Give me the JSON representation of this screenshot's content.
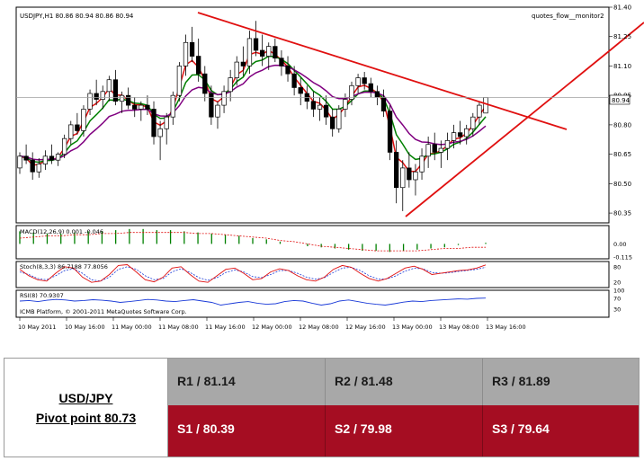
{
  "chart_data": {
    "type": "candlestick",
    "title": "USDJPY,H1  80.86 80.94 80.86 80.94",
    "watermark": "quotes_flow__monitor2",
    "price_axis": {
      "ticks": [
        "81.40",
        "81.25",
        "81.10",
        "80.95",
        "80.80",
        "80.65",
        "80.50",
        "80.35"
      ],
      "ylim": [
        80.3,
        81.4
      ],
      "current_price": "80.94"
    },
    "time_axis": [
      "10 May 2011",
      "10 May 16:00",
      "11 May 00:00",
      "11 May 08:00",
      "11 May 16:00",
      "12 May 00:00",
      "12 May 08:00",
      "12 May 16:00",
      "13 May 00:00",
      "13 May 08:00",
      "13 May 16:00"
    ],
    "candles": [
      [
        80.58,
        80.66,
        80.55,
        80.64
      ],
      [
        80.64,
        80.7,
        80.6,
        80.62
      ],
      [
        80.62,
        80.66,
        80.52,
        80.56
      ],
      [
        80.56,
        80.63,
        80.53,
        80.6
      ],
      [
        80.6,
        80.67,
        80.57,
        80.64
      ],
      [
        80.64,
        80.7,
        80.6,
        80.62
      ],
      [
        80.62,
        80.66,
        80.59,
        80.65
      ],
      [
        80.65,
        80.75,
        80.63,
        80.73
      ],
      [
        80.73,
        80.82,
        80.7,
        80.8
      ],
      [
        80.8,
        80.86,
        80.75,
        80.77
      ],
      [
        80.77,
        80.9,
        80.74,
        80.88
      ],
      [
        80.88,
        80.98,
        80.85,
        80.96
      ],
      [
        80.96,
        81.03,
        80.9,
        80.93
      ],
      [
        80.93,
        81.0,
        80.88,
        80.97
      ],
      [
        80.97,
        81.05,
        80.92,
        81.03
      ],
      [
        81.03,
        81.08,
        80.9,
        80.92
      ],
      [
        80.92,
        80.97,
        80.86,
        80.95
      ],
      [
        80.95,
        80.99,
        80.88,
        80.9
      ],
      [
        80.9,
        80.94,
        80.84,
        80.88
      ],
      [
        80.88,
        80.92,
        80.82,
        80.9
      ],
      [
        80.9,
        80.95,
        80.85,
        80.88
      ],
      [
        80.88,
        80.92,
        80.7,
        80.74
      ],
      [
        80.74,
        80.82,
        80.62,
        80.78
      ],
      [
        80.78,
        80.86,
        80.7,
        80.84
      ],
      [
        80.84,
        80.97,
        80.8,
        80.95
      ],
      [
        80.95,
        81.12,
        80.92,
        81.1
      ],
      [
        81.1,
        81.26,
        81.05,
        81.22
      ],
      [
        81.22,
        81.3,
        81.12,
        81.15
      ],
      [
        81.15,
        81.24,
        81.02,
        81.06
      ],
      [
        81.06,
        81.1,
        80.92,
        80.96
      ],
      [
        80.96,
        81.0,
        80.8,
        80.84
      ],
      [
        80.84,
        80.92,
        80.78,
        80.9
      ],
      [
        80.9,
        81.0,
        80.86,
        80.97
      ],
      [
        80.97,
        81.08,
        80.92,
        81.04
      ],
      [
        81.04,
        81.15,
        81.0,
        81.12
      ],
      [
        81.12,
        81.2,
        81.05,
        81.1
      ],
      [
        81.1,
        81.28,
        81.06,
        81.24
      ],
      [
        81.24,
        81.33,
        81.15,
        81.18
      ],
      [
        81.18,
        81.26,
        81.1,
        81.15
      ],
      [
        81.15,
        81.22,
        81.08,
        81.2
      ],
      [
        81.2,
        81.24,
        81.12,
        81.14
      ],
      [
        81.14,
        81.18,
        81.05,
        81.1
      ],
      [
        81.1,
        81.15,
        81.02,
        81.06
      ],
      [
        81.06,
        81.1,
        80.95,
        80.99
      ],
      [
        80.99,
        81.04,
        80.9,
        80.96
      ],
      [
        80.96,
        81.0,
        80.88,
        80.92
      ],
      [
        80.92,
        80.97,
        80.84,
        80.88
      ],
      [
        80.88,
        80.94,
        80.82,
        80.9
      ],
      [
        80.9,
        80.95,
        80.8,
        80.84
      ],
      [
        80.84,
        80.88,
        80.74,
        80.78
      ],
      [
        80.78,
        80.9,
        80.76,
        80.88
      ],
      [
        80.88,
        80.96,
        80.84,
        80.93
      ],
      [
        80.93,
        81.02,
        80.9,
        81.0
      ],
      [
        81.0,
        81.06,
        80.96,
        81.04
      ],
      [
        81.04,
        81.07,
        80.98,
        81.01
      ],
      [
        81.01,
        81.04,
        80.94,
        80.97
      ],
      [
        80.97,
        81.0,
        80.9,
        80.94
      ],
      [
        80.94,
        80.98,
        80.84,
        80.87
      ],
      [
        80.87,
        80.9,
        80.62,
        80.66
      ],
      [
        80.66,
        80.72,
        80.4,
        80.48
      ],
      [
        80.48,
        80.62,
        80.36,
        80.58
      ],
      [
        80.58,
        80.66,
        80.48,
        80.52
      ],
      [
        80.52,
        80.6,
        80.44,
        80.56
      ],
      [
        80.56,
        80.68,
        80.52,
        80.64
      ],
      [
        80.64,
        80.74,
        80.58,
        80.7
      ],
      [
        80.7,
        80.76,
        80.62,
        80.66
      ],
      [
        80.66,
        80.72,
        80.58,
        80.68
      ],
      [
        80.68,
        80.76,
        80.62,
        80.72
      ],
      [
        80.72,
        80.8,
        80.68,
        80.76
      ],
      [
        80.76,
        80.82,
        80.7,
        80.74
      ],
      [
        80.74,
        80.8,
        80.7,
        80.78
      ],
      [
        80.78,
        80.86,
        80.74,
        80.84
      ],
      [
        80.84,
        80.92,
        80.8,
        80.9
      ],
      [
        80.86,
        80.94,
        80.86,
        80.94
      ]
    ],
    "trendlines": [
      {
        "name": "resistance",
        "color": "#e01010"
      },
      {
        "name": "support",
        "color": "#e01010"
      }
    ],
    "moving_averages": [
      {
        "name": "fast",
        "color": "#e01010"
      },
      {
        "name": "medium",
        "color": "#008000"
      },
      {
        "name": "slow",
        "color": "#800080"
      }
    ],
    "macd": {
      "label": "MACD(12,26,9) 0.001 -0.046",
      "ticks": [
        "0.00",
        "-0.115"
      ],
      "ylim": [
        -0.13,
        0.16
      ],
      "histogram": [
        0.11,
        0.1,
        0.09,
        0.09,
        0.1,
        0.11,
        0.11,
        0.12,
        0.13,
        0.13,
        0.12,
        0.12,
        0.11,
        0.1,
        0.09,
        0.08,
        0.07,
        0.05,
        0.04,
        0.02,
        0.0,
        -0.02,
        -0.03,
        -0.04,
        -0.05,
        -0.06,
        -0.06,
        -0.07,
        -0.06,
        -0.05,
        -0.04,
        -0.03,
        -0.01,
        0.0,
        0.01
      ],
      "signal": [
        0.05,
        0.06,
        0.07,
        0.07,
        0.08,
        0.08,
        0.09,
        0.09,
        0.1,
        0.1,
        0.1,
        0.1,
        0.1,
        0.09,
        0.09,
        0.08,
        0.07,
        0.06,
        0.05,
        0.03,
        0.02,
        0.0,
        -0.02,
        -0.03,
        -0.04,
        -0.05,
        -0.06,
        -0.06,
        -0.06,
        -0.06,
        -0.05,
        -0.04,
        -0.04,
        -0.03,
        -0.03
      ],
      "signal_color": "#e01010",
      "hist_color": "#008000"
    },
    "stochastic": {
      "label": "Stoch(8,3,3) 86.7188 77.8056",
      "ticks": [
        "80",
        "20"
      ],
      "ylim": [
        0,
        100
      ],
      "k": [
        70,
        45,
        30,
        25,
        55,
        80,
        75,
        40,
        20,
        25,
        50,
        85,
        88,
        60,
        30,
        22,
        40,
        75,
        80,
        50,
        25,
        20,
        45,
        70,
        75,
        55,
        30,
        35,
        60,
        72,
        65,
        45,
        30,
        25,
        40,
        70,
        85,
        78,
        55,
        35,
        25,
        35,
        55,
        75,
        82,
        70,
        50,
        55,
        60,
        65,
        68,
        75,
        87
      ],
      "d": [
        60,
        50,
        35,
        30,
        45,
        65,
        72,
        55,
        30,
        25,
        40,
        70,
        80,
        70,
        45,
        30,
        35,
        60,
        72,
        58,
        38,
        28,
        38,
        58,
        68,
        60,
        42,
        38,
        50,
        65,
        66,
        55,
        40,
        32,
        38,
        58,
        75,
        78,
        65,
        45,
        32,
        33,
        45,
        63,
        74,
        72,
        58,
        55,
        57,
        62,
        66,
        70,
        78
      ],
      "k_color": "#e01010",
      "d_color": "#1a3ad8"
    },
    "rsi": {
      "label": "RSI(8) 70.9307",
      "ticks": [
        "100",
        "70",
        "30"
      ],
      "ylim": [
        0,
        100
      ],
      "values": [
        60,
        62,
        58,
        63,
        66,
        64,
        60,
        62,
        65,
        63,
        60,
        55,
        58,
        62,
        66,
        64,
        60,
        58,
        62,
        65,
        60,
        55,
        45,
        50,
        55,
        58,
        52,
        48,
        50,
        58,
        62,
        60,
        52,
        45,
        50,
        60,
        64,
        58,
        52,
        48,
        45,
        50,
        56,
        60,
        58,
        62,
        64,
        66,
        68,
        67,
        70,
        71
      ],
      "color": "#1a3ad8"
    },
    "footer": "ICMB Platform, © 2001-2011 MetaQuotes Software Corp."
  },
  "pivot": {
    "pair": "USD/JPY",
    "pivot_label": "Pivot point 80.73",
    "r1": "R1 / 81.14",
    "r2": "R2 / 81.48",
    "r3": "R3 / 81.89",
    "s1": "S1 / 80.39",
    "s2": "S2 / 79.98",
    "s3": "S3 / 79.64",
    "resistance_color": "#a8a8a8",
    "support_color": "#a50d22"
  }
}
